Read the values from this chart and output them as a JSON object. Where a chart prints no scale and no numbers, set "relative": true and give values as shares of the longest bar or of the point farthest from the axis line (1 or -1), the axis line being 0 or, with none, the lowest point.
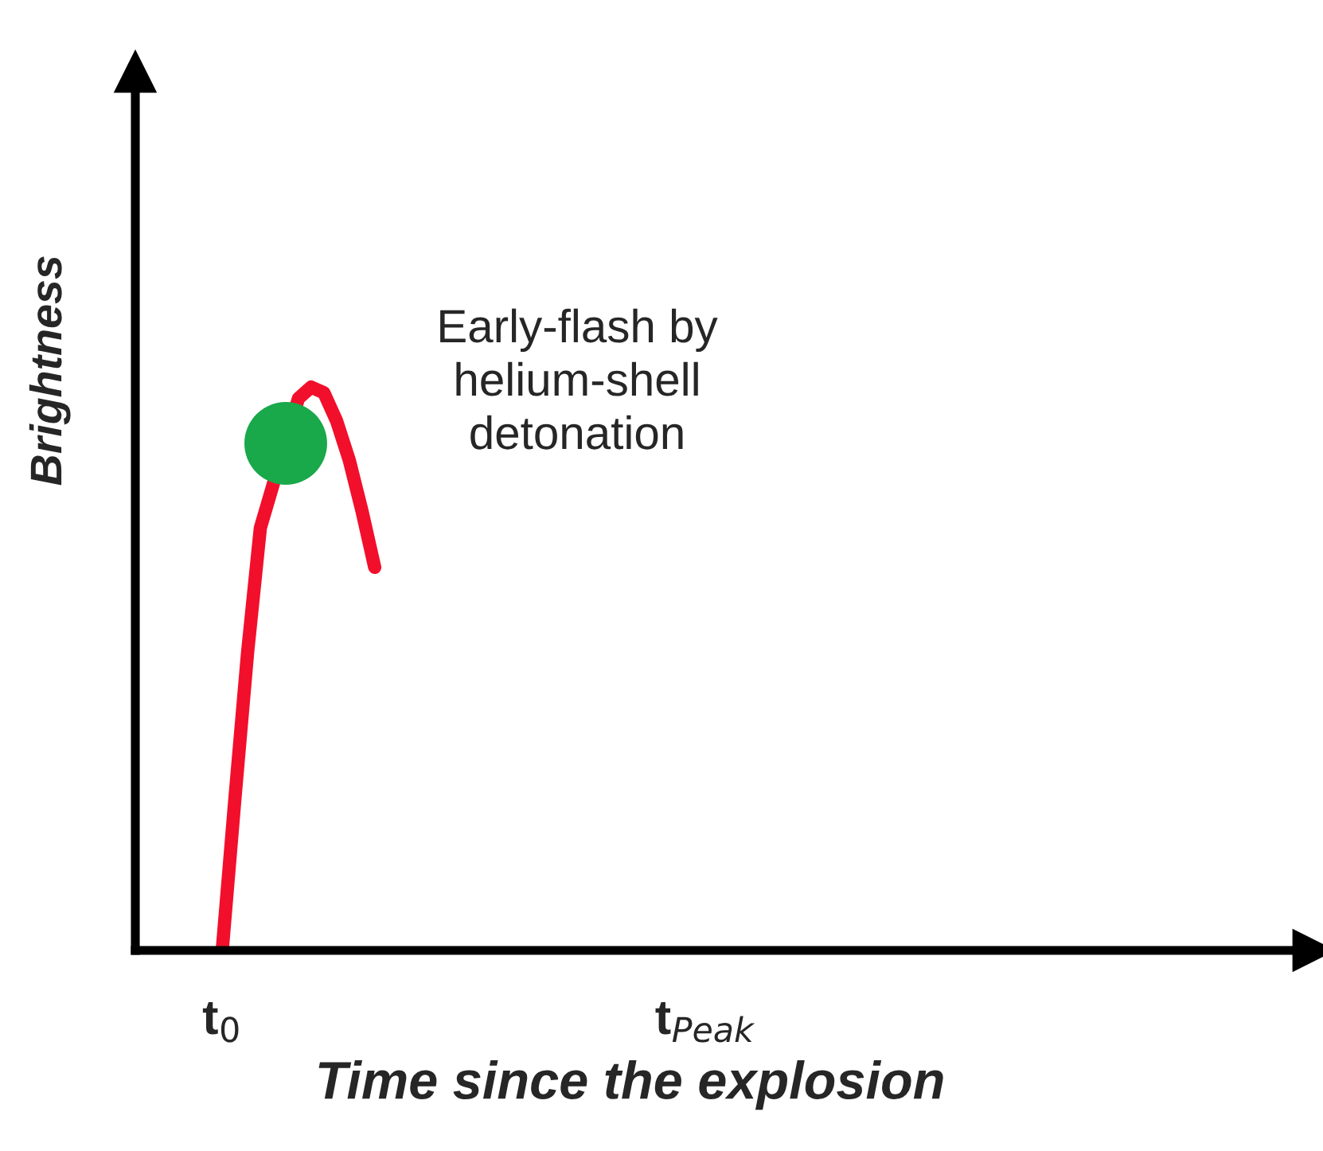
{
  "chart_data": {
    "type": "line",
    "relative": true,
    "xlabel": "Time since the explosion",
    "ylabel": "Brightness",
    "categories": [
      "t$_{0}$",
      null,
      null,
      null,
      null,
      null,
      null,
      null,
      null,
      null,
      null,
      null,
      null,
      null,
      null,
      null,
      null,
      null,
      null,
      null,
      null,
      null,
      null,
      null,
      null,
      null,
      null,
      null,
      null,
      null,
      null,
      null,
      null,
      null,
      null,
      null,
      null,
      null,
      "t$_{Peak}$"
    ],
    "series": [
      {
        "color": "#f20f2b",
        "values": [
          0,
          0.27,
          0.53,
          0.75,
          null,
          null,
          0.98,
          1.0,
          0.99,
          0.94,
          0.87,
          0.78,
          0.68,
          null,
          null,
          null,
          null,
          null,
          null,
          null,
          null,
          null,
          null,
          null,
          null,
          null,
          null,
          null,
          null,
          null,
          null,
          null,
          null,
          null,
          null,
          null,
          null,
          null,
          null
        ]
      },
      {
        "type": "scatter",
        "color": "#19a84a",
        "values": [
          null,
          null,
          null,
          null,
          null,
          0.9,
          null,
          null,
          null,
          null,
          null,
          null,
          null,
          null,
          null,
          null,
          null,
          null,
          null,
          null,
          null,
          null,
          null,
          null,
          null,
          null,
          null,
          null,
          null,
          null,
          null,
          null,
          null,
          null,
          null,
          null,
          null,
          null,
          null
        ]
      }
    ],
    "annotations": [
      "Early-flash by\nhelium-shell\ndetonation"
    ],
    "grid": false,
    "legend": false
  }
}
